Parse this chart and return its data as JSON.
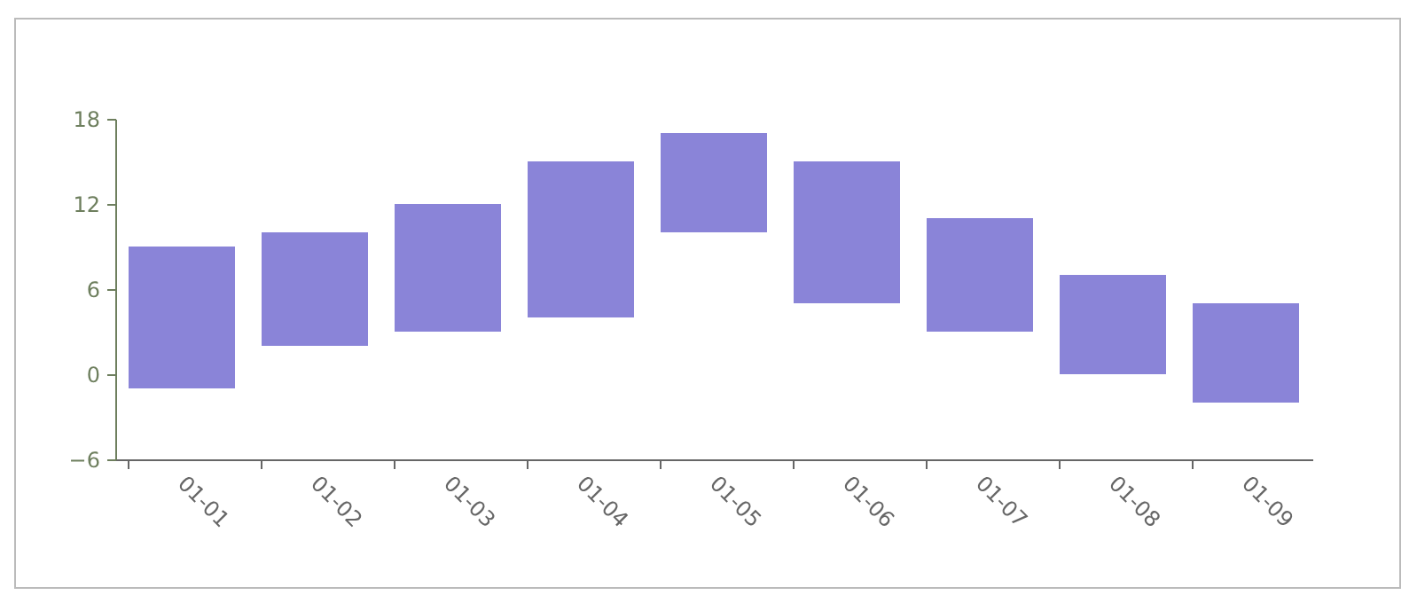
{
  "chart_data": {
    "type": "bar",
    "categories": [
      "01-01",
      "01-02",
      "01-03",
      "01-04",
      "01-05",
      "01-06",
      "01-07",
      "01-08",
      "01-09"
    ],
    "base": [
      -1,
      2,
      3,
      4,
      10,
      5,
      3,
      0,
      -2
    ],
    "values": [
      10,
      8,
      9,
      11,
      7,
      10,
      8,
      7,
      7
    ],
    "color": "#8a84d8",
    "ylim": [
      -6,
      18
    ],
    "yticks": [
      -6,
      0,
      6,
      12,
      18
    ],
    "grid": false
  }
}
